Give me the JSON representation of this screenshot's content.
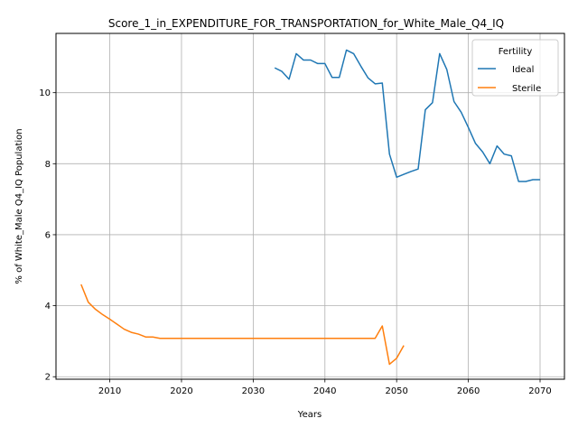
{
  "chart_data": {
    "type": "line",
    "title": "Score_1_in_EXPENDITURE_FOR_TRANSPORTATION_for_White_Male_Q4_IQ",
    "xlabel": "Years",
    "ylabel": "% of White_Male Q4_IQ Population",
    "xlim": [
      2002.5,
      2073.4
    ],
    "ylim": [
      1.93,
      11.67
    ],
    "xticks": [
      2010,
      2020,
      2030,
      2040,
      2050,
      2060,
      2070
    ],
    "yticks": [
      2,
      4,
      6,
      8,
      10
    ],
    "grid": true,
    "legend": {
      "title": "Fertility",
      "placement": "top-right"
    },
    "series": [
      {
        "name": "Ideal",
        "color": "#1f77b4",
        "x": [
          2033,
          2034,
          2035,
          2036,
          2037,
          2038,
          2039,
          2040,
          2041,
          2042,
          2043,
          2044,
          2045,
          2046,
          2047,
          2048,
          2049,
          2050,
          2051,
          2052,
          2053,
          2054,
          2055,
          2056,
          2057,
          2058,
          2059,
          2060,
          2061,
          2062,
          2063,
          2064,
          2065,
          2066,
          2067,
          2068,
          2069,
          2070
        ],
        "y": [
          10.7,
          10.6,
          10.38,
          11.1,
          10.92,
          10.92,
          10.82,
          10.82,
          10.43,
          10.43,
          11.2,
          11.1,
          10.75,
          10.42,
          10.25,
          10.27,
          8.27,
          7.62,
          7.7,
          7.78,
          7.85,
          9.52,
          9.72,
          11.1,
          10.65,
          9.75,
          9.45,
          9.02,
          8.57,
          8.33,
          8.0,
          8.5,
          8.27,
          8.22,
          7.5,
          7.5,
          7.55,
          7.55
        ]
      },
      {
        "name": "Sterile",
        "color": "#ff7f0e",
        "x": [
          2006,
          2007,
          2008,
          2009,
          2010,
          2011,
          2012,
          2013,
          2014,
          2015,
          2016,
          2017,
          2018,
          2019,
          2020,
          2021,
          2022,
          2023,
          2024,
          2025,
          2026,
          2027,
          2028,
          2029,
          2030,
          2031,
          2032,
          2033,
          2034,
          2035,
          2036,
          2037,
          2038,
          2039,
          2040,
          2041,
          2042,
          2043,
          2044,
          2045,
          2046,
          2047,
          2048,
          2049,
          2050,
          2051
        ],
        "y": [
          4.6,
          4.1,
          3.9,
          3.75,
          3.62,
          3.48,
          3.34,
          3.25,
          3.2,
          3.12,
          3.12,
          3.08,
          3.08,
          3.08,
          3.08,
          3.08,
          3.08,
          3.08,
          3.08,
          3.08,
          3.08,
          3.08,
          3.08,
          3.08,
          3.08,
          3.08,
          3.08,
          3.08,
          3.08,
          3.08,
          3.08,
          3.08,
          3.08,
          3.08,
          3.08,
          3.08,
          3.08,
          3.08,
          3.08,
          3.08,
          3.08,
          3.08,
          3.43,
          2.35,
          2.52,
          2.88
        ]
      }
    ]
  }
}
